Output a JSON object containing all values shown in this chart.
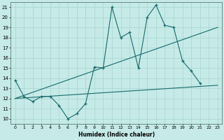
{
  "xlabel": "Humidex (Indice chaleur)",
  "line_color": "#1a6b6b",
  "bg_color": "#c5eae7",
  "grid_color": "#a8d5d1",
  "ylim": [
    9.5,
    21.5
  ],
  "xlim": [
    -0.5,
    23.5
  ],
  "line1_x": [
    0,
    1,
    2,
    3,
    4,
    5,
    6,
    7,
    8,
    9,
    10,
    11,
    12,
    13,
    14,
    15,
    16,
    17,
    18,
    19,
    20,
    21
  ],
  "line1_y": [
    13.8,
    12.2,
    11.7,
    12.2,
    12.2,
    11.3,
    10.0,
    10.5,
    11.5,
    15.1,
    15.0,
    21.0,
    18.0,
    18.5,
    15.0,
    20.0,
    21.2,
    19.2,
    19.0,
    15.7,
    14.7,
    13.5
  ],
  "line2_x": [
    0,
    23
  ],
  "line2_y": [
    12.0,
    19.0
  ],
  "line3_x": [
    0,
    23
  ],
  "line3_y": [
    12.0,
    13.3
  ],
  "yticks": [
    10,
    11,
    12,
    13,
    14,
    15,
    16,
    17,
    18,
    19,
    20,
    21
  ],
  "xticks": [
    0,
    1,
    2,
    3,
    4,
    5,
    6,
    7,
    8,
    9,
    10,
    11,
    12,
    13,
    14,
    15,
    16,
    17,
    18,
    19,
    20,
    21,
    22,
    23
  ]
}
